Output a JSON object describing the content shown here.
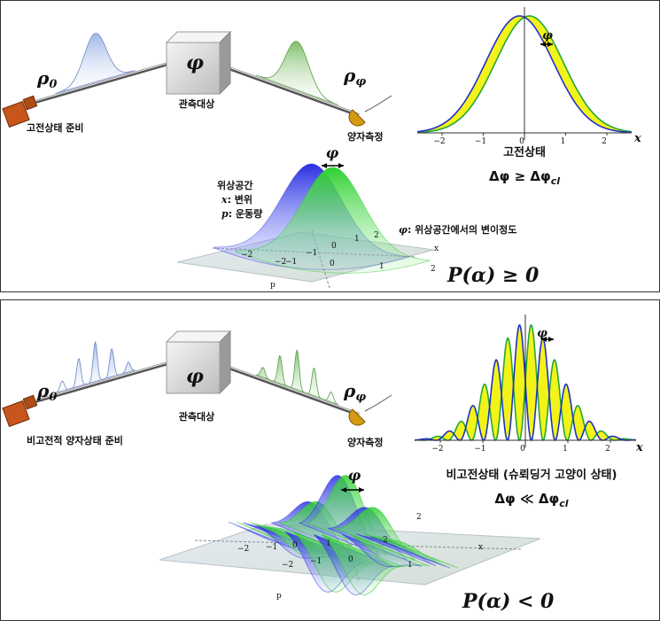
{
  "panels": [
    {
      "setup": {
        "rho_in": {
          "symbol": "ρ",
          "sub": "0"
        },
        "object_symbol": "φ",
        "object_label": "관측대상",
        "rho_out": {
          "symbol": "ρ",
          "sub": "φ"
        },
        "prepare_label": "고전상태 준비",
        "measure_label": "양자측정"
      },
      "plot": {
        "shift_label": "φ",
        "xticks": [
          "−2",
          "−1",
          "0",
          "1",
          "2"
        ],
        "xlabel": "x",
        "state_label": "고전상태",
        "relation": {
          "text": "Δφ ≥ Δφ",
          "sub": "cl"
        }
      },
      "phase_space": {
        "shift_label": "φ",
        "legend_title": "위상공간",
        "legend_x": {
          "symbol": "x",
          "text": ": 변위"
        },
        "legend_p": {
          "symbol": "p",
          "text": ": 운동량"
        },
        "shift_note": {
          "symbol": "φ",
          "text": ": 위상공간에서의 변이정도"
        },
        "axis_labels": [
          "−2",
          "−2",
          "−1",
          "−1",
          "0",
          "1",
          "2",
          "0",
          "1",
          "2",
          "x",
          "p"
        ],
        "condition": "P(α) ≥ 0"
      }
    },
    {
      "setup": {
        "rho_in": {
          "symbol": "ρ",
          "sub": "0"
        },
        "object_symbol": "φ",
        "object_label": "관측대상",
        "rho_out": {
          "symbol": "ρ",
          "sub": "φ"
        },
        "prepare_label": "비고전적 양자상태 준비",
        "measure_label": "양자측정"
      },
      "plot": {
        "shift_label": "φ",
        "xticks": [
          "−2",
          "−1",
          "0",
          "1",
          "2"
        ],
        "xlabel": "x",
        "state_label": "비고전상태 (슈뢰딩거 고양이 상태)",
        "relation": {
          "text": "Δφ ≪ Δφ",
          "sub": "cl"
        }
      },
      "phase_space": {
        "shift_label": "φ",
        "axis_labels": [
          "−2",
          "−1",
          "0",
          "1",
          "2",
          "−2",
          "−1",
          "0",
          "1",
          "2",
          "x",
          "p"
        ],
        "condition": "P(α) < 0"
      }
    }
  ]
}
